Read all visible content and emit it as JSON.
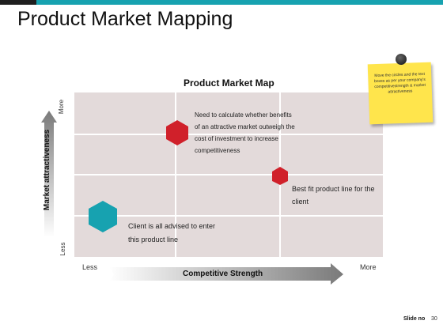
{
  "slide": {
    "title": "Product Market Mapping",
    "slide_no_label": "Slide no",
    "slide_number": "30"
  },
  "chart": {
    "title": "Product Market Map",
    "y_axis_title": "Market attractiveness",
    "y_more": "More",
    "y_less": "Less",
    "x_axis_title": "Competitive Strength",
    "x_less": "Less",
    "x_more": "More"
  },
  "callouts": {
    "top_line1": "Need to calculate whether benefits",
    "top_line2": "of an attractive market outweigh the",
    "top_line3": "cost of investment to increase",
    "top_line4": "competitiveness",
    "right_line1": "Best fit product line for the",
    "right_line2": "client",
    "bottom_line1": "Client is all advised to enter",
    "bottom_line2": "this product line"
  },
  "sticky_note": {
    "text": "Move the circles and the text boxes as per your company's competitivestrength & market attractiveness"
  },
  "colors": {
    "accent_teal": "#17a2b0",
    "hex_red": "#d0202a",
    "hex_teal": "#17a2b0",
    "grid_bg": "#e3dada",
    "note_yellow": "#ffe54c"
  }
}
